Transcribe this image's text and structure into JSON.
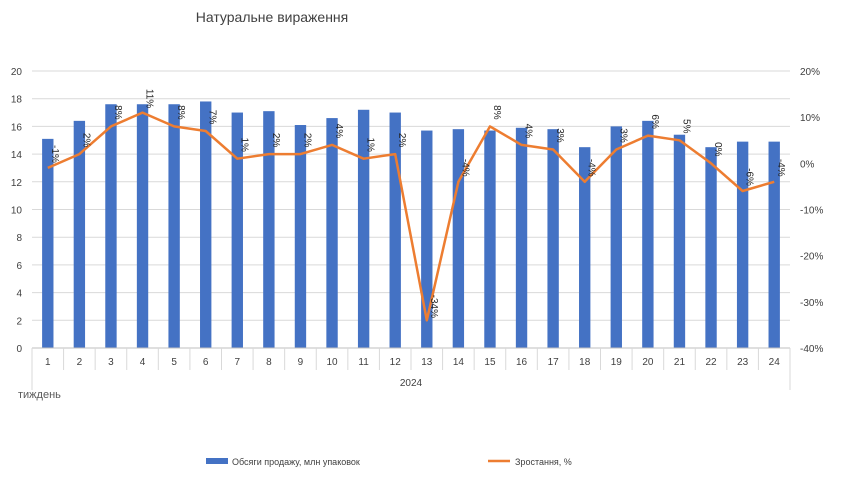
{
  "chart_data": {
    "type": "bar",
    "title": "Натуральне вираження",
    "xlabel": "тиждень",
    "x_group_label": "2024",
    "categories": [
      "1",
      "2",
      "3",
      "4",
      "5",
      "6",
      "7",
      "8",
      "9",
      "10",
      "11",
      "12",
      "13",
      "14",
      "15",
      "16",
      "17",
      "18",
      "19",
      "20",
      "21",
      "22",
      "23",
      "24"
    ],
    "y_left": {
      "min": 0,
      "max": 20,
      "step": 2
    },
    "y_right": {
      "min": -40,
      "max": 20,
      "step": 10,
      "unit": "%"
    },
    "grid": "horizontal",
    "legend_position": "bottom",
    "series": [
      {
        "name": "Обсяги продажу, млн упаковок",
        "type": "bar",
        "axis": "left",
        "color": "#4472C4",
        "values": [
          15.1,
          16.4,
          17.6,
          17.6,
          17.6,
          17.8,
          17.0,
          17.1,
          16.1,
          16.6,
          17.2,
          17.0,
          15.7,
          15.8,
          15.7,
          15.9,
          15.8,
          14.5,
          16.0,
          16.4,
          15.4,
          14.5,
          14.9,
          14.9
        ]
      },
      {
        "name": "Зростання, %",
        "type": "line",
        "axis": "right",
        "color": "#ED7D31",
        "values": [
          -1,
          2,
          8,
          11,
          8,
          7,
          1,
          2,
          2,
          4,
          1,
          2,
          -34,
          -4,
          8,
          4,
          3,
          -4,
          3,
          6,
          5,
          0,
          -6,
          -4
        ],
        "labels": [
          "-1%",
          "2%",
          "8%",
          "11%",
          "8%",
          "7%",
          "1%",
          "2%",
          "2%",
          "4%",
          "1%",
          "2%",
          "-34%",
          "-4%",
          "8%",
          "4%",
          "3%",
          "-4%",
          "3%",
          "6%",
          "5%",
          "0%",
          "-6%",
          "-4%"
        ]
      }
    ]
  }
}
